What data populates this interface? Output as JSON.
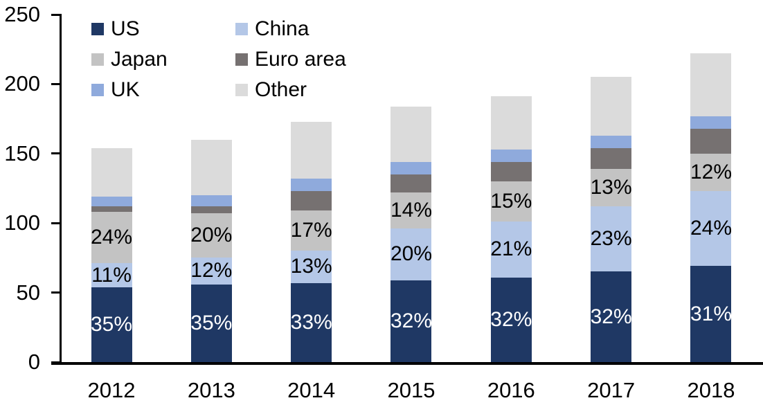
{
  "chart_data": {
    "type": "bar",
    "stacked": true,
    "title": "",
    "categories": [
      "2012",
      "2013",
      "2014",
      "2015",
      "2016",
      "2017",
      "2018"
    ],
    "series": [
      {
        "name": "US",
        "color": "#1F3864",
        "label_color": "#FFFFFF",
        "values": [
          54,
          56,
          57,
          59,
          61,
          65,
          69
        ],
        "labels": [
          "35%",
          "35%",
          "33%",
          "32%",
          "32%",
          "32%",
          "31%"
        ]
      },
      {
        "name": "China",
        "color": "#B4C7E7",
        "label_color": "#000000",
        "values": [
          17,
          19,
          23,
          37,
          40,
          47,
          54
        ],
        "labels": [
          "11%",
          "12%",
          "13%",
          "20%",
          "21%",
          "23%",
          "24%"
        ]
      },
      {
        "name": "Japan",
        "color": "#C3C3C3",
        "label_color": "#000000",
        "values": [
          37,
          32,
          29,
          26,
          29,
          27,
          27
        ],
        "labels": [
          "24%",
          "20%",
          "17%",
          "14%",
          "15%",
          "13%",
          "12%"
        ]
      },
      {
        "name": "Euro area",
        "color": "#767171",
        "label_color": "#000000",
        "values": [
          4,
          5,
          14,
          13,
          14,
          15,
          18
        ],
        "labels": null
      },
      {
        "name": "UK",
        "color": "#8FAADC",
        "label_color": "#000000",
        "values": [
          7,
          8,
          9,
          9,
          9,
          9,
          9
        ],
        "labels": null
      },
      {
        "name": "Other",
        "color": "#DBDBDB",
        "label_color": "#000000",
        "values": [
          35,
          40,
          41,
          40,
          38,
          42,
          45
        ],
        "labels": null
      }
    ],
    "totals": [
      154,
      160,
      173,
      184,
      191,
      205,
      222
    ],
    "ylim": [
      0,
      250
    ],
    "yticks": [
      0,
      50,
      100,
      150,
      200,
      250
    ],
    "xlabel": "",
    "ylabel": "",
    "grid": false,
    "legend_position": "top-left",
    "legend_columns": 2,
    "axis_color": "#000000",
    "background_color": "#FFFFFF"
  }
}
